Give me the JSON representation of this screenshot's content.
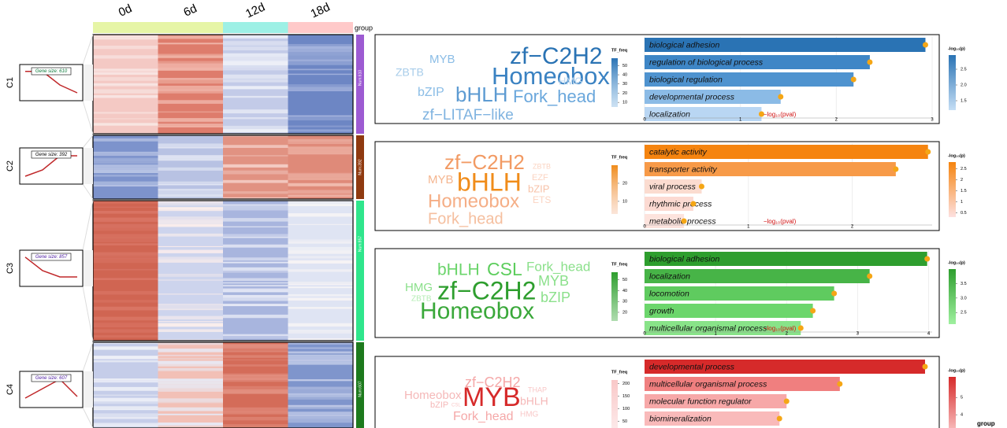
{
  "columns": [
    "0d",
    "6d",
    "12d",
    "18d"
  ],
  "group_label": "group",
  "corner_label": "group",
  "clusters": [
    {
      "name": "C1",
      "gene_size_label": "Gene size: 610",
      "num_label": "Num:610",
      "profile": [
        0.88,
        0.88,
        0.45,
        0.2
      ],
      "words": [
        "MYB",
        "zf−C2H2",
        "ZBTB",
        "Homeobox",
        "HMG",
        "bZIP",
        "bHLH",
        "Fork_head",
        "zf−LITAF−like"
      ],
      "tf_legend": {
        "title": "TF_freq",
        "lim": [
          5,
          58
        ],
        "ticks": [
          10,
          20,
          30,
          40,
          50
        ]
      },
      "go": {
        "terms": [
          "biological adhesion",
          "regulation of biological process",
          "biological regulation",
          "developmental process",
          "localization"
        ],
        "values": [
          2.93,
          2.35,
          2.18,
          1.42,
          1.22
        ],
        "colors": [
          "#2a73b4",
          "#3e86c6",
          "#4f93cf",
          "#8bbbe6",
          "#b9d6f3"
        ],
        "xlim": [
          0,
          3
        ],
        "xticks": [
          0,
          1,
          2,
          3
        ],
        "axis_label": "−log₁₀(pval)"
      },
      "p_legend": {
        "title": "-log₁₀(p)",
        "lim": [
          1.2,
          2.95
        ],
        "ticks": [
          {
            "value": 1.5,
            "label": "1.5"
          },
          {
            "value": 2,
            "label": "2.0"
          },
          {
            "value": 2.5,
            "label": "2.5"
          }
        ],
        "colors": [
          "#c5def5",
          "#2a73b4"
        ]
      }
    },
    {
      "name": "C2",
      "gene_size_label": "Gene size: 392",
      "num_label": "Num:392",
      "profile": [
        0.2,
        0.4,
        0.85,
        0.85
      ],
      "words": [
        "zf−C2H2",
        "ZBTB",
        "MYB",
        "bHLH",
        "EZF",
        "bZIP",
        "Homeobox",
        "ETS",
        "Fork_head"
      ],
      "tf_legend": {
        "title": "TF_freq",
        "lim": [
          3,
          30
        ],
        "ticks": [
          10,
          20
        ]
      },
      "go": {
        "terms": [
          "catalytic activity",
          "transporter activity",
          "viral process",
          "rhythmic process",
          "metabolic process"
        ],
        "values": [
          2.73,
          2.42,
          0.55,
          0.47,
          0.38
        ],
        "colors": [
          "#f5840f",
          "#f79a48",
          "#fbdcd0",
          "#fcdad2",
          "#fde3dd"
        ],
        "xlim": [
          0,
          2.77
        ],
        "xticks": [
          0,
          1,
          2
        ],
        "axis_label": "−log₁₀(pval)"
      },
      "p_legend": {
        "title": "-log₁₀(p)",
        "lim": [
          0.3,
          2.8
        ],
        "ticks": [
          0.5,
          1,
          1.5,
          2,
          2.5
        ],
        "colors": [
          "#fde0e0",
          "#f5840f"
        ]
      }
    },
    {
      "name": "C3",
      "gene_size_label": "Gene size: 857",
      "num_label": "Num:857",
      "profile": [
        0.88,
        0.45,
        0.25,
        0.25
      ],
      "words": [
        "bHLH",
        "CSL",
        "Fork_head",
        "HMG",
        "MYB",
        "ZBTB",
        "zf−C2H2",
        "bZIP",
        "Homeobox"
      ],
      "tf_legend": {
        "title": "TF_freq",
        "lim": [
          12,
          57
        ],
        "ticks": [
          20,
          30,
          40,
          50
        ]
      },
      "go": {
        "terms": [
          "biological adhesion",
          "localization",
          "locomotion",
          "growth",
          "multicellular organismal process"
        ],
        "values": [
          3.98,
          3.17,
          2.67,
          2.37,
          2.2
        ],
        "colors": [
          "#2e9e2e",
          "#47b447",
          "#5fcb5f",
          "#6cd66c",
          "#88e388"
        ],
        "xlim": [
          0,
          4.05
        ],
        "xticks": [
          0,
          1,
          2,
          3,
          4
        ],
        "axis_label": "−log₁₀(pval)"
      },
      "p_legend": {
        "title": "-log₁₀(p)",
        "lim": [
          2.1,
          4.0
        ],
        "ticks": [
          {
            "value": 2.5,
            "label": "2.5"
          },
          {
            "value": 3,
            "label": "3.0"
          },
          {
            "value": 3.5,
            "label": "3.5"
          }
        ],
        "colors": [
          "#9ff09f",
          "#2e9e2e"
        ]
      }
    },
    {
      "name": "C4",
      "gene_size_label": "Gene size: 607",
      "num_label": "Num:607",
      "profile": [
        0.25,
        0.55,
        0.85,
        0.3
      ],
      "words": [
        "zf−C2H2",
        "Homeobox",
        "MYB",
        "THAP",
        "bZIP",
        "CSL",
        "bHLH",
        "Fork_head",
        "HMG"
      ],
      "tf_legend": {
        "title": "TF_freq",
        "lim": [
          20,
          215
        ],
        "ticks": [
          50,
          100,
          150,
          200
        ]
      },
      "go": {
        "terms": [
          "developmental process",
          "multicellular organismal process",
          "molecular function regulator",
          "biomineralization"
        ],
        "values": [
          3.95,
          2.75,
          2.0,
          1.9
        ],
        "colors": [
          "#d62a2a",
          "#f07f7f",
          "#f7a8a8",
          "#f9baba"
        ],
        "xlim": [
          0,
          4.05
        ]
      },
      "p_legend": {
        "title": "-log₁₀(p)",
        "lim": [
          3,
          6.2
        ],
        "ticks": [
          4,
          5
        ],
        "colors": [
          "#f9c0c0",
          "#d62a2a"
        ]
      }
    }
  ]
}
